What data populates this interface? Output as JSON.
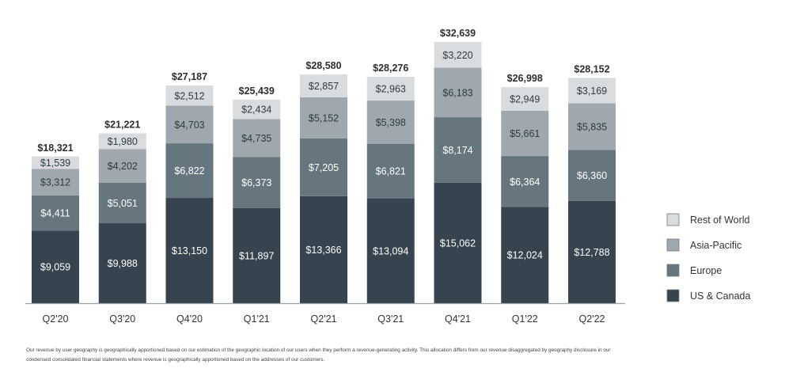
{
  "chart_data": {
    "type": "bar",
    "stacked": true,
    "categories": [
      "Q2'20",
      "Q3'20",
      "Q4'20",
      "Q1'21",
      "Q2'21",
      "Q3'21",
      "Q4'21",
      "Q1'22",
      "Q2'22"
    ],
    "series": [
      {
        "name": "US & Canada",
        "color": "#35444f",
        "values": [
          9059,
          9988,
          13150,
          11897,
          13366,
          13094,
          15062,
          12024,
          12788
        ],
        "labels": [
          "$9,059",
          "$9,988",
          "$13,150",
          "$11,897",
          "$13,366",
          "$13,094",
          "$15,062",
          "$12,024",
          "$12,788"
        ]
      },
      {
        "name": "Europe",
        "color": "#66767f",
        "values": [
          4411,
          5051,
          6822,
          6373,
          7205,
          6821,
          8174,
          6364,
          6360
        ],
        "labels": [
          "$4,411",
          "$5,051",
          "$6,822",
          "$6,373",
          "$7,205",
          "$6,821",
          "$8,174",
          "$6,364",
          "$6,360"
        ]
      },
      {
        "name": "Asia-Pacific",
        "color": "#9ea8ae",
        "values": [
          3312,
          4202,
          4703,
          4735,
          5152,
          5398,
          6183,
          5661,
          5835
        ],
        "labels": [
          "$3,312",
          "$4,202",
          "$4,703",
          "$4,735",
          "$5,152",
          "$5,398",
          "$6,183",
          "$5,661",
          "$5,835"
        ]
      },
      {
        "name": "Rest of World",
        "color": "#d8dcdf",
        "values": [
          1539,
          1980,
          2512,
          2434,
          2857,
          2963,
          3220,
          2949,
          3169
        ],
        "labels": [
          "$1,539",
          "$1,980",
          "$2,512",
          "$2,434",
          "$2,857",
          "$2,963",
          "$3,220",
          "$2,949",
          "$3,169"
        ]
      }
    ],
    "totals": [
      18321,
      21221,
      27187,
      25439,
      28580,
      28276,
      32639,
      26998,
      28152
    ],
    "total_labels": [
      "$18,321",
      "$21,221",
      "$27,187",
      "$25,439",
      "$28,580",
      "$28,276",
      "$32,639",
      "$26,998",
      "$28,152"
    ],
    "ylim": [
      0,
      32639
    ],
    "grid": false,
    "legend": {
      "position": "right",
      "order": [
        "Rest of World",
        "Asia-Pacific",
        "Europe",
        "US & Canada"
      ]
    }
  },
  "footnote": {
    "line1": "Our revenue by user geography is geographically apportioned based on our estimation of the geographic location of our users when they perform a revenue-generating activity. This allocation differs from our revenue disaggregated by geography disclosure in our",
    "line2": "condensed consolidated financial statements where revenue is geographically apportioned based on the addresses of our customers."
  }
}
